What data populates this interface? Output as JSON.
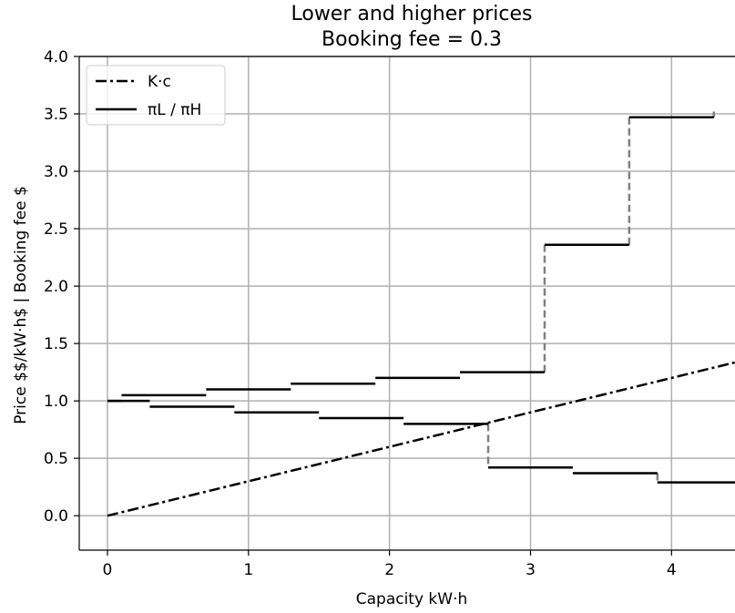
{
  "chart_data": {
    "type": "line",
    "title_lines": [
      "Lower and higher prices",
      "Booking fee = 0.3"
    ],
    "xlabel": "Capacity kW·h",
    "ylabel": "Price $$/kW·h$ | Booking fee $",
    "xlim": [
      -0.2,
      4.45
    ],
    "ylim": [
      -0.3,
      4.0
    ],
    "x_ticks": [
      0,
      1,
      2,
      3,
      4
    ],
    "y_ticks": [
      0.0,
      0.5,
      1.0,
      1.5,
      2.0,
      2.5,
      3.0,
      3.5,
      4.0
    ],
    "x_tick_labels": [
      "0",
      "1",
      "2",
      "3",
      "4"
    ],
    "y_tick_labels": [
      "0.0",
      "0.5",
      "1.0",
      "1.5",
      "2.0",
      "2.5",
      "3.0",
      "3.5",
      "4.0"
    ],
    "grid": true,
    "legend_position": "top-left",
    "legend": [
      {
        "label": "K·c",
        "style": "dashdot"
      },
      {
        "label": "πL / πH",
        "style": "solid"
      }
    ],
    "series": [
      {
        "name": "K·c",
        "style": "dashdot",
        "color": "#000000",
        "x": [
          0,
          4.45
        ],
        "y": [
          0,
          1.335
        ]
      }
    ],
    "steps": {
      "color": "#000000",
      "connector_color": "#808080",
      "segments": [
        {
          "x0": 0.0,
          "x1": 0.1,
          "y": 1.0
        },
        {
          "x0": 0.1,
          "x1": 0.7,
          "y": 1.05
        },
        {
          "x0": 0.7,
          "x1": 1.3,
          "y": 1.1
        },
        {
          "x0": 1.3,
          "x1": 1.9,
          "y": 1.15
        },
        {
          "x0": 1.9,
          "x1": 2.5,
          "y": 1.2
        },
        {
          "x0": 2.5,
          "x1": 3.1,
          "y": 1.25
        },
        {
          "x0": 3.1,
          "x1": 3.7,
          "y": 2.36
        },
        {
          "x0": 3.7,
          "x1": 4.3,
          "y": 3.47
        },
        {
          "x0": 0.0,
          "x1": 0.3,
          "y": 1.0
        },
        {
          "x0": 0.3,
          "x1": 0.9,
          "y": 0.95
        },
        {
          "x0": 0.9,
          "x1": 1.5,
          "y": 0.9
        },
        {
          "x0": 1.5,
          "x1": 2.1,
          "y": 0.85
        },
        {
          "x0": 2.1,
          "x1": 2.7,
          "y": 0.8
        },
        {
          "x0": 2.7,
          "x1": 3.3,
          "y": 0.42
        },
        {
          "x0": 3.3,
          "x1": 3.9,
          "y": 0.37
        },
        {
          "x0": 3.9,
          "x1": 4.45,
          "y": 0.29
        }
      ],
      "connectors": [
        {
          "x": 3.1,
          "y0": 1.25,
          "y1": 2.36
        },
        {
          "x": 3.7,
          "y0": 2.36,
          "y1": 3.47
        },
        {
          "x": 4.3,
          "y0": 3.47,
          "y1": 3.52
        },
        {
          "x": 2.7,
          "y0": 0.8,
          "y1": 0.42
        },
        {
          "x": 3.9,
          "y0": 0.37,
          "y1": 0.29
        }
      ]
    }
  }
}
